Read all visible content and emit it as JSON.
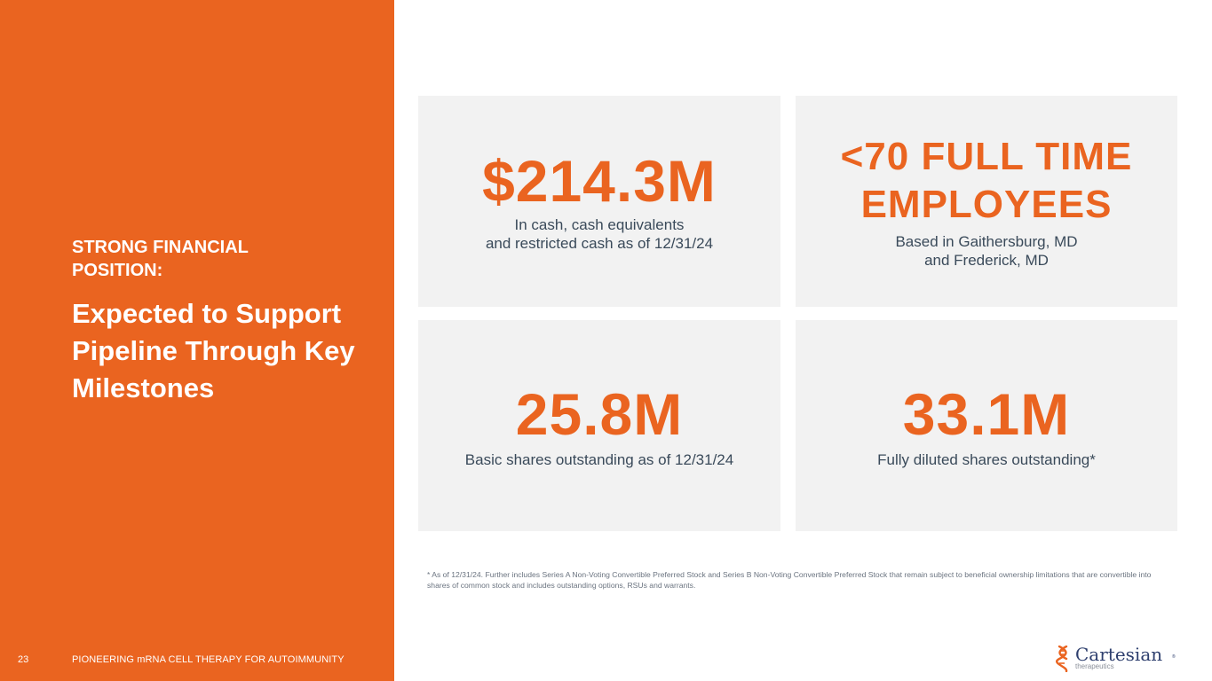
{
  "left_panel": {
    "eyebrow": "STRONG FINANCIAL POSITION:",
    "headline": "Expected to Support Pipeline Through Key Milestones",
    "page_number": "23",
    "footer_text": "PIONEERING mRNA CELL THERAPY FOR AUTOIMMUNITY"
  },
  "stats": [
    {
      "value": "$214.3M",
      "label_line1": "In cash, cash equivalents",
      "label_line2": "and restricted cash as of 12/31/24"
    },
    {
      "value_line1": "<70 FULL TIME",
      "value_line2": "EMPLOYEES",
      "label_line1": "Based in Gaithersburg, MD",
      "label_line2": "and Frederick, MD"
    },
    {
      "value": "25.8M",
      "label_line1": "Basic shares outstanding as of 12/31/24"
    },
    {
      "value": "33.1M",
      "label_line1": "Fully diluted shares outstanding*"
    }
  ],
  "footnote": "* As of 12/31/24. Further includes Series A Non-Voting Convertible Preferred Stock and Series B Non-Voting Convertible Preferred Stock that remain subject to beneficial ownership limitations that are convertible into shares of common stock and includes outstanding options, RSUs and warrants.",
  "logo": {
    "name": "Cartesian",
    "sub": "therapeutics",
    "reg": "®",
    "icon": "dna-helix-icon"
  },
  "colors": {
    "brand_orange": "#EA6420",
    "card_bg": "#F2F2F2",
    "label_text": "#3A4A5A",
    "logo_navy": "#2E3F6E"
  }
}
